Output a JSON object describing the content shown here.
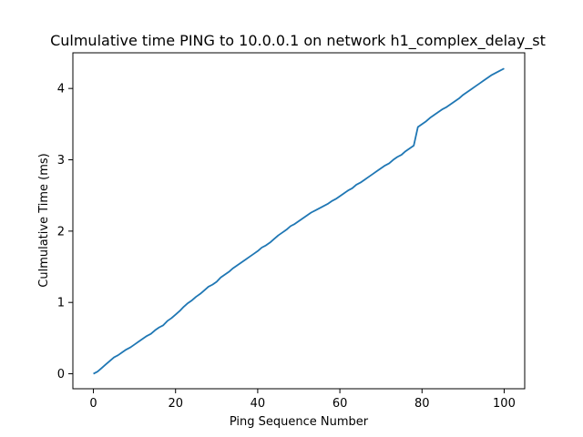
{
  "chart_data": {
    "type": "line",
    "title": "Culmulative time PING to 10.0.0.1 on network h1_complex_delay_st",
    "xlabel": "Ping Sequence Number",
    "ylabel": "Culmulative Time (ms)",
    "xlim": [
      -5,
      105
    ],
    "ylim": [
      -0.21,
      4.5
    ],
    "xticks": [
      0,
      20,
      40,
      60,
      80,
      100
    ],
    "yticks": [
      0,
      1,
      2,
      3,
      4
    ],
    "grid": false,
    "line_color": "#1f77b4",
    "series": [
      {
        "x": [
          0,
          1,
          2,
          3,
          4,
          5,
          6,
          7,
          8,
          9,
          10,
          11,
          12,
          13,
          14,
          15,
          16,
          17,
          18,
          19,
          20,
          21,
          22,
          23,
          24,
          25,
          26,
          27,
          28,
          29,
          30,
          31,
          32,
          33,
          34,
          35,
          36,
          37,
          38,
          39,
          40,
          41,
          42,
          43,
          44,
          45,
          46,
          47,
          48,
          49,
          50,
          51,
          52,
          53,
          54,
          55,
          56,
          57,
          58,
          59,
          60,
          61,
          62,
          63,
          64,
          65,
          66,
          67,
          68,
          69,
          70,
          71,
          72,
          73,
          74,
          75,
          76,
          77,
          78,
          79,
          80,
          81,
          82,
          83,
          84,
          85,
          86,
          87,
          88,
          89,
          90,
          91,
          92,
          93,
          94,
          95,
          96,
          97,
          98,
          99,
          100
        ],
        "y": [
          0,
          0.03,
          0.08,
          0.13,
          0.18,
          0.23,
          0.26,
          0.3,
          0.34,
          0.37,
          0.41,
          0.45,
          0.49,
          0.53,
          0.56,
          0.61,
          0.65,
          0.68,
          0.74,
          0.78,
          0.83,
          0.88,
          0.94,
          0.99,
          1.03,
          1.08,
          1.12,
          1.17,
          1.22,
          1.25,
          1.29,
          1.35,
          1.39,
          1.43,
          1.48,
          1.52,
          1.56,
          1.6,
          1.64,
          1.68,
          1.72,
          1.77,
          1.8,
          1.84,
          1.89,
          1.94,
          1.98,
          2.02,
          2.07,
          2.1,
          2.14,
          2.18,
          2.22,
          2.26,
          2.29,
          2.32,
          2.35,
          2.38,
          2.42,
          2.45,
          2.49,
          2.53,
          2.57,
          2.6,
          2.65,
          2.68,
          2.72,
          2.76,
          2.8,
          2.84,
          2.88,
          2.92,
          2.95,
          3.0,
          3.04,
          3.07,
          3.12,
          3.16,
          3.2,
          3.46,
          3.5,
          3.54,
          3.59,
          3.63,
          3.67,
          3.71,
          3.74,
          3.78,
          3.82,
          3.86,
          3.91,
          3.95,
          3.99,
          4.03,
          4.07,
          4.11,
          4.15,
          4.19,
          4.22,
          4.25,
          4.28
        ]
      }
    ]
  }
}
